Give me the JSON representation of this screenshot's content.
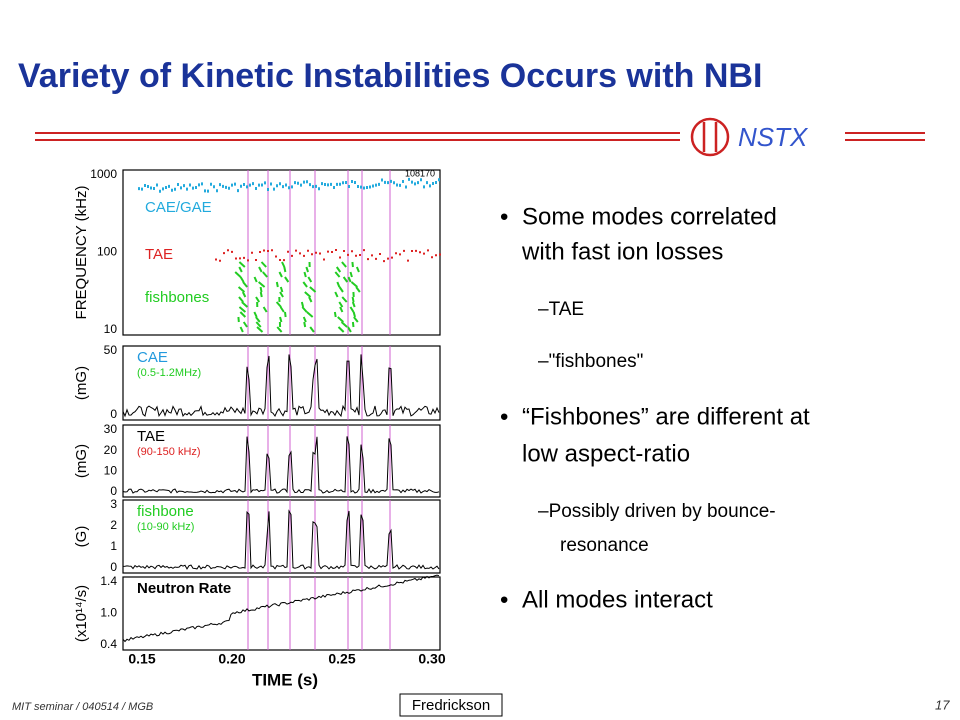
{
  "header": {
    "title": "Variety of Kinetic Instabilities Occurs with NBI",
    "logo": "NSTX"
  },
  "figure": {
    "shot": "108170",
    "x_label": "TIME (s)",
    "x_ticks": [
      "0.15",
      "0.20",
      "0.25",
      "0.30"
    ],
    "panels": [
      {
        "y_label": "FREQUENCY (kHz)",
        "y_ticks": [
          "1000",
          "100",
          "10"
        ],
        "labels": [
          "CAE/GAE",
          "TAE",
          "fishbones"
        ]
      },
      {
        "y_label": "(mG)",
        "y_ticks": [
          "50",
          "0"
        ],
        "labels": [
          "CAE",
          "(0.5-1.2MHz)"
        ]
      },
      {
        "y_label": "(mG)",
        "y_ticks": [
          "30",
          "20",
          "10",
          "0"
        ],
        "labels": [
          "TAE",
          "(90-150 kHz)"
        ]
      },
      {
        "y_label": "(G)",
        "y_ticks": [
          "3",
          "2",
          "1",
          "0"
        ],
        "labels": [
          "fishbone",
          "(10-90 kHz)"
        ]
      },
      {
        "y_label": "(x10¹⁴/s)",
        "y_ticks": [
          "1.4",
          "1.0",
          "0.4"
        ],
        "labels": [
          "Neutron Rate"
        ]
      }
    ]
  },
  "bullets": [
    {
      "level": 1,
      "lines": [
        "Some modes correlated",
        "with fast ion losses"
      ]
    },
    {
      "level": 2,
      "lines": [
        "–TAE"
      ]
    },
    {
      "level": 2,
      "lines": [
        "–\"fishbones\""
      ]
    },
    {
      "level": 1,
      "lines": [
        "“Fishbones” are different at",
        "low aspect-ratio"
      ]
    },
    {
      "level": 2,
      "lines": [
        "–Possibly driven by bounce-",
        "resonance"
      ]
    },
    {
      "level": 1,
      "lines": [
        "All modes interact"
      ]
    }
  ],
  "footer": {
    "left": "MIT seminar / 040514 / MGB",
    "center": "Fredrickson",
    "page": "17"
  }
}
